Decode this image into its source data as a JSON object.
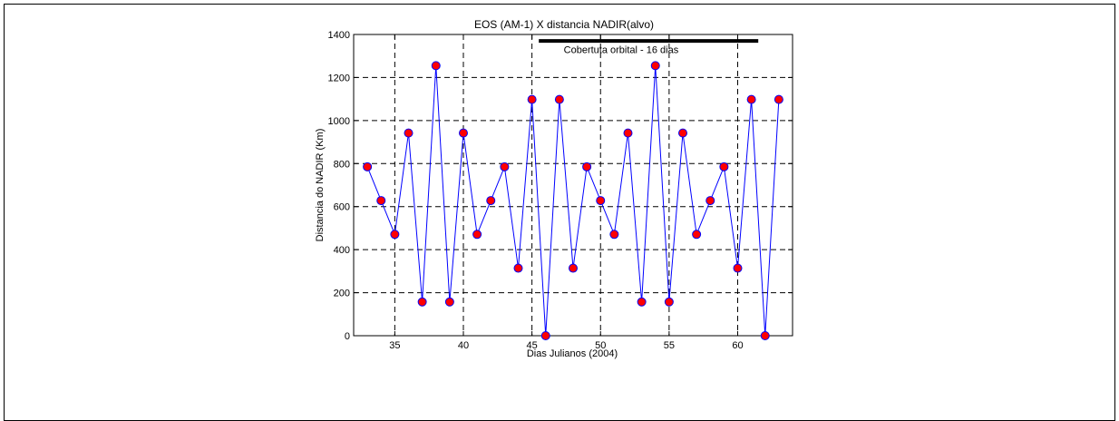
{
  "chart_data": {
    "type": "line",
    "title": "EOS (AM-1) X distancia NADIR(alvo)",
    "xlabel": "Dias Julianos (2004)",
    "ylabel": "Distancia do NADIR (Km)",
    "xlim": [
      32,
      64
    ],
    "ylim": [
      0,
      1400
    ],
    "xticks": [
      35,
      40,
      45,
      50,
      55,
      60
    ],
    "yticks": [
      0,
      200,
      400,
      600,
      800,
      1000,
      1200,
      1400
    ],
    "grid": true,
    "series": [
      {
        "x": [
          33,
          34,
          35,
          36,
          37,
          38,
          39,
          40,
          41,
          42,
          43,
          44,
          45,
          46,
          47,
          48,
          49,
          50,
          51,
          52,
          53,
          54,
          55,
          56,
          57,
          58,
          59,
          60,
          61,
          62,
          63
        ],
        "y": [
          785,
          628,
          471,
          942,
          157,
          1255,
          157,
          942,
          471,
          628,
          785,
          314,
          1098,
          0,
          1098,
          314,
          785,
          628,
          471,
          942,
          157,
          1255,
          157,
          942,
          471,
          628,
          785,
          314,
          1098,
          0,
          1098
        ],
        "line_color": "#0000ff",
        "marker_color": "#ff0000",
        "marker_edge": "#0000ff"
      }
    ],
    "annotation": {
      "text": "Cobertuta orbital - 16 dias",
      "x_start": 45.5,
      "x_end": 61.5,
      "y": 1370,
      "text_x": 51.5,
      "text_y": 1330
    }
  }
}
